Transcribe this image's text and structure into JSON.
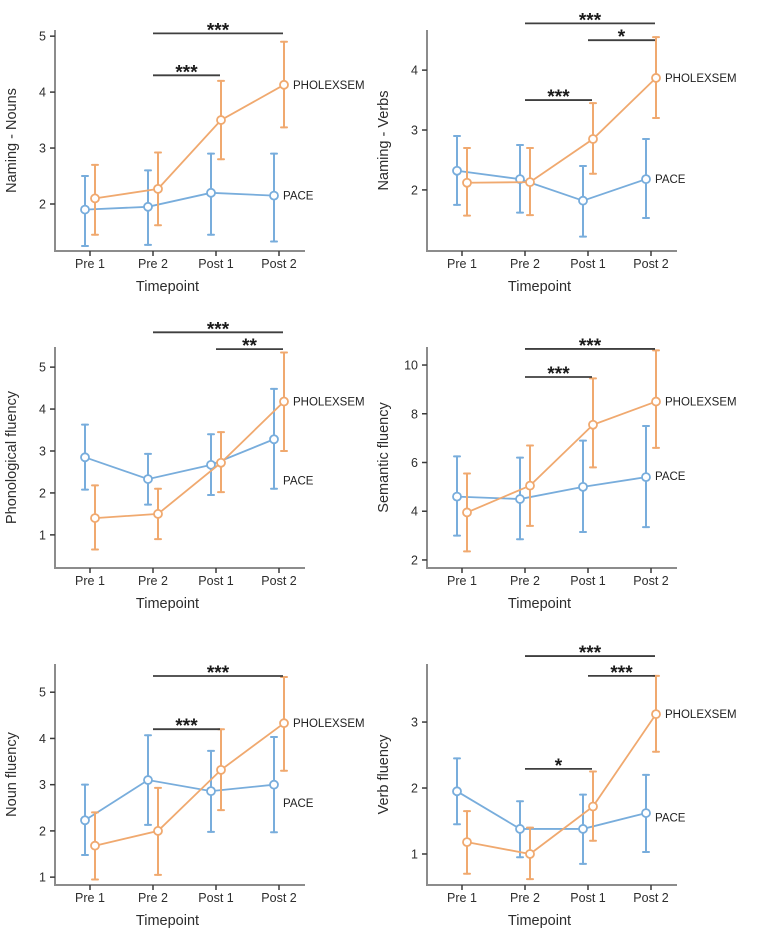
{
  "figure": {
    "categories": [
      "Pre 1",
      "Pre 2",
      "Post 1",
      "Post 2"
    ],
    "xlabel": "Timepoint",
    "series_names": [
      "PACE",
      "PHOLEXSEM"
    ],
    "colors": {
      "PACE": "#78ADDC",
      "PHOLEXSEM": "#F0A96F",
      "axis": "#8c8c8c",
      "tick": "#3a3a3a",
      "text": "#2d2d2d",
      "bracket": "#3f3f3f",
      "stars": "#1a1a1a",
      "marker_fill": "#ffffff"
    }
  },
  "chart_data": [
    {
      "type": "line",
      "ylabel": "Naming - Nouns",
      "xlabel": "Timepoint",
      "categories": [
        "Pre 1",
        "Pre 2",
        "Post 1",
        "Post 2"
      ],
      "ylim": [
        1.16,
        5.11
      ],
      "yticks": [
        2,
        3,
        4,
        5
      ],
      "series": [
        {
          "name": "PACE",
          "values": [
            1.9,
            1.95,
            2.2,
            2.15
          ],
          "err_low": [
            1.25,
            1.27,
            1.45,
            1.33
          ],
          "err_high": [
            2.5,
            2.6,
            2.9,
            2.9
          ],
          "label_y": 2.15
        },
        {
          "name": "PHOLEXSEM",
          "values": [
            2.1,
            2.27,
            3.5,
            4.13
          ],
          "err_low": [
            1.45,
            1.62,
            2.8,
            3.37
          ],
          "err_high": [
            2.7,
            2.92,
            4.2,
            4.9
          ],
          "label_y": 4.13
        }
      ],
      "significance": [
        {
          "from": "Pre 2",
          "to": "Post 2",
          "stars": "***",
          "y": 5.05
        },
        {
          "from": "Pre 2",
          "to": "Post 1",
          "stars": "***",
          "y": 4.3
        }
      ]
    },
    {
      "type": "line",
      "ylabel": "Naming - Verbs",
      "xlabel": "Timepoint",
      "categories": [
        "Pre 1",
        "Pre 2",
        "Post 1",
        "Post 2"
      ],
      "ylim": [
        0.98,
        4.67
      ],
      "yticks": [
        2,
        3,
        4
      ],
      "series": [
        {
          "name": "PACE",
          "values": [
            2.32,
            2.18,
            1.82,
            2.18
          ],
          "err_low": [
            1.75,
            1.62,
            1.22,
            1.53
          ],
          "err_high": [
            2.9,
            2.75,
            2.4,
            2.85
          ],
          "label_y": 2.18
        },
        {
          "name": "PHOLEXSEM",
          "values": [
            2.12,
            2.13,
            2.85,
            3.87
          ],
          "err_low": [
            1.57,
            1.58,
            2.27,
            3.2
          ],
          "err_high": [
            2.7,
            2.7,
            3.45,
            4.55
          ],
          "label_y": 3.87
        }
      ],
      "significance": [
        {
          "from": "Pre 2",
          "to": "Post 2",
          "stars": "***",
          "y": 4.78
        },
        {
          "from": "Post 1",
          "to": "Post 2",
          "stars": "*",
          "y": 4.5
        },
        {
          "from": "Pre 2",
          "to": "Post 1",
          "stars": "***",
          "y": 3.5
        }
      ]
    },
    {
      "type": "line",
      "ylabel": "Phonological fluency",
      "xlabel": "Timepoint",
      "categories": [
        "Pre 1",
        "Pre 2",
        "Post 1",
        "Post 2"
      ],
      "ylim": [
        0.21,
        5.48
      ],
      "yticks": [
        1,
        2,
        3,
        4,
        5
      ],
      "series": [
        {
          "name": "PACE",
          "values": [
            2.85,
            2.33,
            2.67,
            3.28
          ],
          "err_low": [
            2.08,
            1.72,
            1.95,
            2.1
          ],
          "err_high": [
            3.63,
            2.93,
            3.4,
            4.48
          ],
          "label_y": 2.3
        },
        {
          "name": "PHOLEXSEM",
          "values": [
            1.4,
            1.5,
            2.72,
            4.18
          ],
          "err_low": [
            0.65,
            0.9,
            2.02,
            3.0
          ],
          "err_high": [
            2.18,
            2.1,
            3.45,
            5.35
          ],
          "label_y": 4.18
        }
      ],
      "significance": [
        {
          "from": "Pre 2",
          "to": "Post 2",
          "stars": "***",
          "y": 5.83
        },
        {
          "from": "Post 1",
          "to": "Post 2",
          "stars": "**",
          "y": 5.43
        }
      ]
    },
    {
      "type": "line",
      "ylabel": "Semantic fluency",
      "xlabel": "Timepoint",
      "categories": [
        "Pre 1",
        "Pre 2",
        "Post 1",
        "Post 2"
      ],
      "ylim": [
        1.67,
        10.74
      ],
      "yticks": [
        2,
        4,
        6,
        8,
        10
      ],
      "series": [
        {
          "name": "PACE",
          "values": [
            4.6,
            4.5,
            5.0,
            5.4
          ],
          "err_low": [
            3.0,
            2.85,
            3.15,
            3.35
          ],
          "err_high": [
            6.25,
            6.2,
            6.9,
            7.5
          ],
          "label_y": 5.45
        },
        {
          "name": "PHOLEXSEM",
          "values": [
            3.95,
            5.05,
            7.55,
            8.5
          ],
          "err_low": [
            2.35,
            3.4,
            5.8,
            6.6
          ],
          "err_high": [
            5.55,
            6.7,
            9.45,
            10.6
          ],
          "label_y": 8.5
        }
      ],
      "significance": [
        {
          "from": "Pre 2",
          "to": "Post 2",
          "stars": "***",
          "y": 10.66
        },
        {
          "from": "Pre 2",
          "to": "Post 1",
          "stars": "***",
          "y": 9.51
        }
      ]
    },
    {
      "type": "line",
      "ylabel": "Noun fluency",
      "xlabel": "Timepoint",
      "categories": [
        "Pre 1",
        "Pre 2",
        "Post 1",
        "Post 2"
      ],
      "ylim": [
        0.83,
        5.61
      ],
      "yticks": [
        1,
        2,
        3,
        4,
        5
      ],
      "series": [
        {
          "name": "PACE",
          "values": [
            2.23,
            3.1,
            2.86,
            3.0
          ],
          "err_low": [
            1.48,
            2.13,
            1.98,
            1.97
          ],
          "err_high": [
            3.0,
            4.07,
            3.73,
            4.03
          ],
          "label_y": 2.6
        },
        {
          "name": "PHOLEXSEM",
          "values": [
            1.68,
            2.0,
            3.32,
            4.33
          ],
          "err_low": [
            0.95,
            1.05,
            2.45,
            3.3
          ],
          "err_high": [
            2.4,
            2.93,
            4.2,
            5.33
          ],
          "label_y": 4.33
        }
      ],
      "significance": [
        {
          "from": "Pre 2",
          "to": "Post 2",
          "stars": "***",
          "y": 5.35
        },
        {
          "from": "Pre 2",
          "to": "Post 1",
          "stars": "***",
          "y": 4.2
        }
      ]
    },
    {
      "type": "line",
      "ylabel": "Verb fluency",
      "xlabel": "Timepoint",
      "categories": [
        "Pre 1",
        "Pre 2",
        "Post 1",
        "Post 2"
      ],
      "ylim": [
        0.53,
        3.88
      ],
      "yticks": [
        1,
        2,
        3
      ],
      "series": [
        {
          "name": "PACE",
          "values": [
            1.95,
            1.38,
            1.38,
            1.62
          ],
          "err_low": [
            1.45,
            0.95,
            0.85,
            1.03
          ],
          "err_high": [
            2.45,
            1.8,
            1.9,
            2.2
          ],
          "label_y": 1.55
        },
        {
          "name": "PHOLEXSEM",
          "values": [
            1.18,
            1.0,
            1.72,
            3.12
          ],
          "err_low": [
            0.7,
            0.62,
            1.2,
            2.55
          ],
          "err_high": [
            1.65,
            1.4,
            2.25,
            3.7
          ],
          "label_y": 3.12
        }
      ],
      "significance": [
        {
          "from": "Pre 2",
          "to": "Post 2",
          "stars": "***",
          "y": 4.0
        },
        {
          "from": "Post 1",
          "to": "Post 2",
          "stars": "***",
          "y": 3.7
        },
        {
          "from": "Pre 2",
          "to": "Post 1",
          "stars": "*",
          "y": 2.29
        }
      ]
    }
  ]
}
